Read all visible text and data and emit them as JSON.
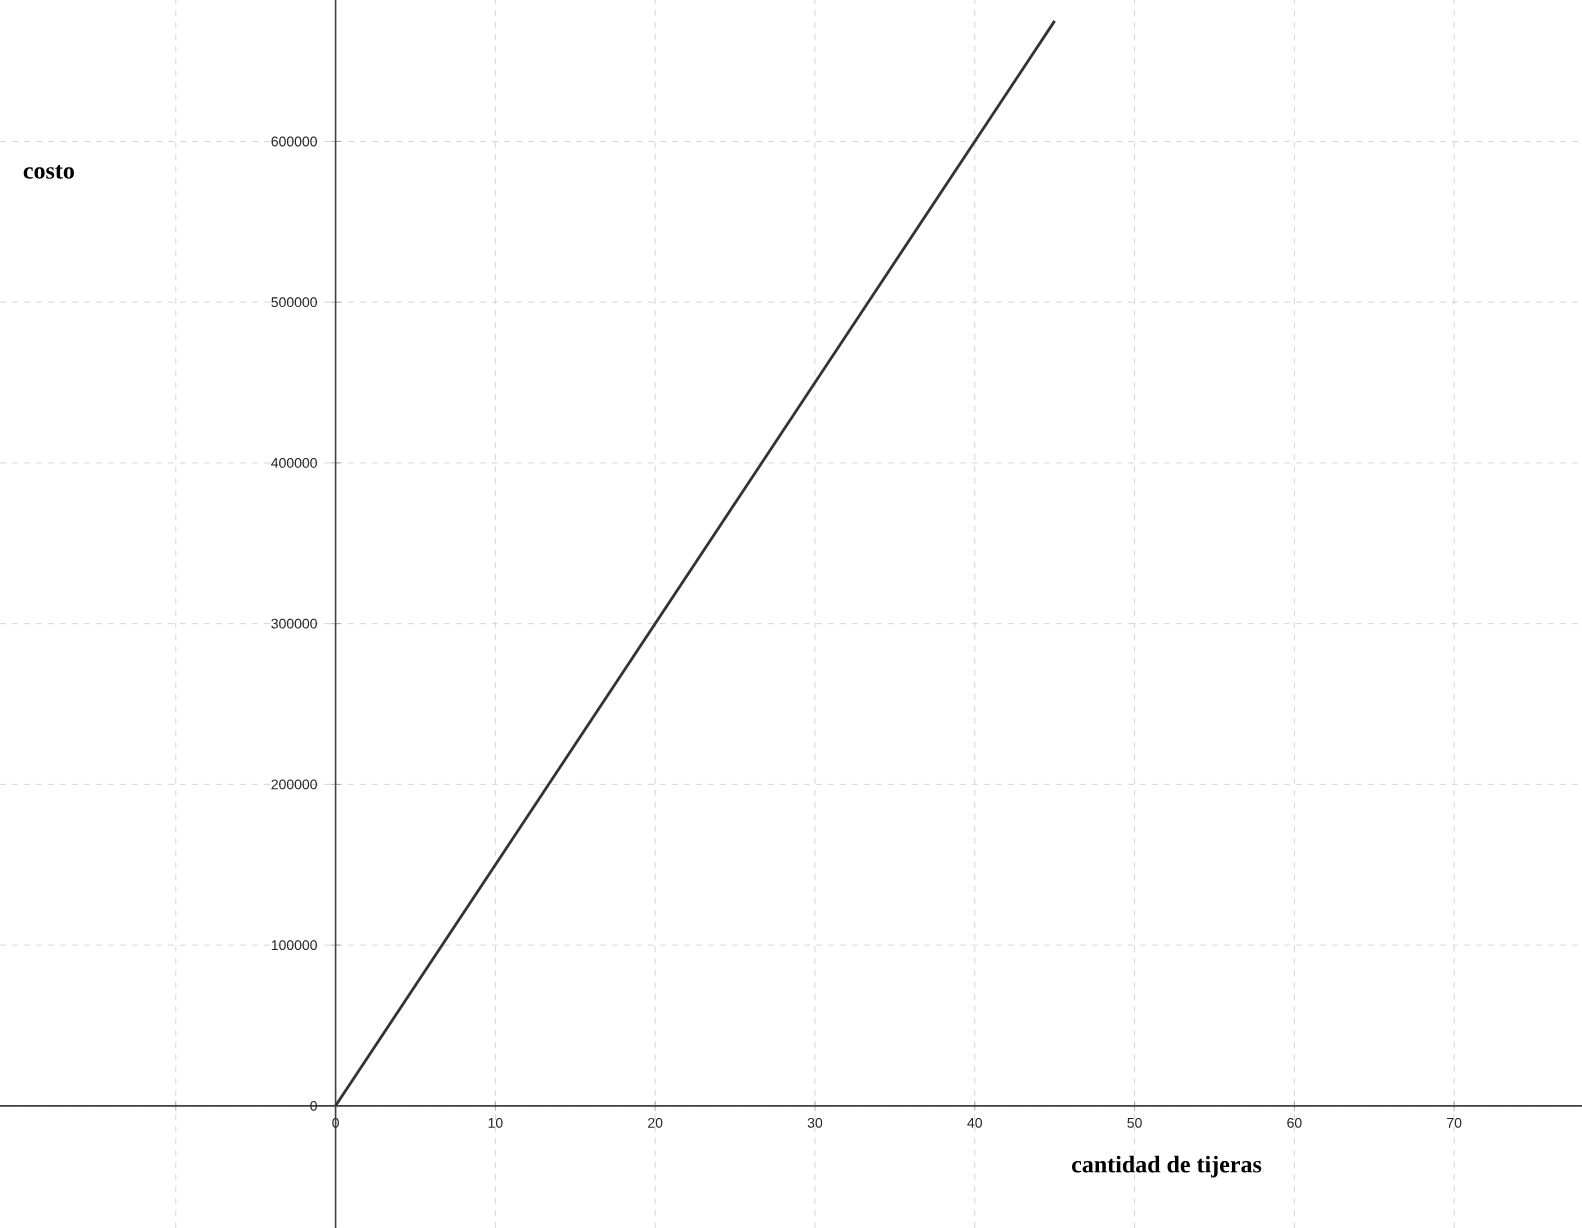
{
  "chart_data": {
    "type": "line",
    "xlabel": "cantidad de tijeras",
    "ylabel": "costo",
    "x": [
      0,
      45
    ],
    "values": [
      0,
      675000
    ],
    "color": "#333333",
    "xlim": [
      -21,
      78
    ],
    "ylim": [
      -76000,
      688000
    ],
    "xticks": [
      {
        "value": -10,
        "label": null
      },
      0,
      10,
      20,
      30,
      40,
      50,
      60,
      70
    ],
    "yticks": [
      0,
      100000,
      200000,
      300000,
      400000,
      500000,
      600000
    ],
    "grid": true
  }
}
